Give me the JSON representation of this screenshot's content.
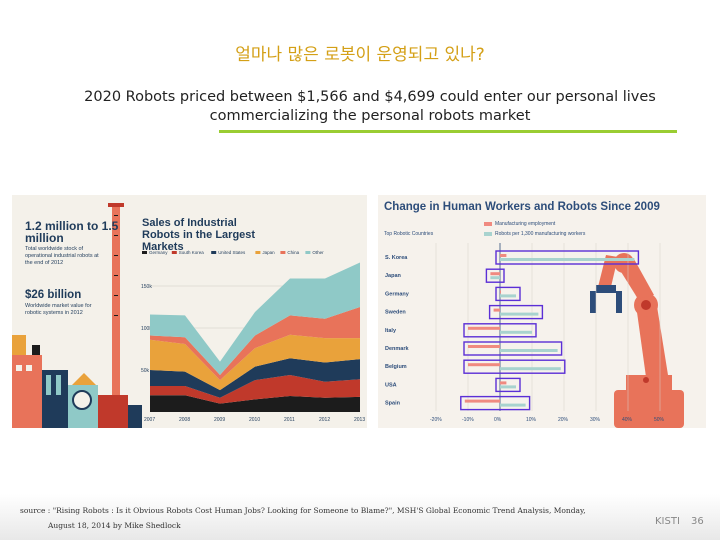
{
  "slide": {
    "title": "얼마나 많은 로봇이 운영되고 있나?",
    "subtitle_line1": "2020  Robots priced between $1,566 and $4,699 could enter our personal lives",
    "subtitle_line2": "commercializing the personal robots market"
  },
  "left_infographic": {
    "stat1": "1.2 million to 1.5 million",
    "stat1_desc": "Total worldwide stock of operational industrial robots at the end of 2012",
    "stat2": "$26 billion",
    "stat2_desc": "Worldwide market value for robotic systems in 2012",
    "chart_title": "Sales of Industrial Robots in the Largest Markets",
    "legend": [
      "Germany",
      "South Korea",
      "United States",
      "Japan",
      "China",
      "Other"
    ],
    "y_ticks": [
      "150k",
      "100k",
      "50k"
    ],
    "x_ticks": [
      "2007",
      "2008",
      "2009",
      "2010",
      "2011",
      "2012",
      "2013"
    ]
  },
  "right_infographic": {
    "title": "Change in Human Workers and Robots Since 2009",
    "subtitle": "Top Robotic Countries",
    "legend_employment": "Manufacturing employment",
    "legend_robots": "Robots per 1,300 manufacturing workers",
    "countries": [
      "S. Korea",
      "Japan",
      "Germany",
      "Sweden",
      "Italy",
      "Denmark",
      "Belgium",
      "USA",
      "Spain"
    ],
    "x_ticks": [
      "-20%",
      "-10%",
      "0%",
      "10%",
      "20%",
      "30%",
      "40%",
      "50%"
    ]
  },
  "footer": {
    "source_line1": "source : \"Rising Robots : Is it Obvious Robots Cost Human Jobs? Looking for Someone to Blame?\", MSH'S Global Economic Trend Analysis, Monday,",
    "source_line2": "August 18, 2014 by Mike Shedlock",
    "org": "KISTI",
    "page": "36"
  },
  "colors": {
    "title": "#d4a017",
    "rule": "#9acd32",
    "germany": "#1c1c1c",
    "south_korea": "#c0392b",
    "united_states": "#1f3b5a",
    "japan": "#e9a23b",
    "china": "#e8735a",
    "other": "#8fc9c7",
    "employment": "#f08a80",
    "robots": "#a8d3cf",
    "highlight": "#5b2fd6"
  },
  "chart_data": [
    {
      "type": "area",
      "title": "Sales of Industrial Robots in the Largest Markets",
      "x": [
        "2007",
        "2008",
        "2009",
        "2010",
        "2011",
        "2012",
        "2013"
      ],
      "ylim": [
        0,
        175000
      ],
      "series": [
        {
          "name": "Germany",
          "values": [
            20000,
            20000,
            10000,
            15000,
            19000,
            17000,
            18000
          ]
        },
        {
          "name": "South Korea",
          "values": [
            11000,
            11000,
            7000,
            23000,
            25000,
            19000,
            21000
          ]
        },
        {
          "name": "United States",
          "values": [
            19000,
            17000,
            9000,
            16000,
            20000,
            23000,
            24000
          ]
        },
        {
          "name": "Japan",
          "values": [
            36000,
            33000,
            12000,
            22000,
            28000,
            29000,
            25000
          ]
        },
        {
          "name": "China",
          "values": [
            5000,
            8000,
            6000,
            15000,
            23000,
            23000,
            37000
          ]
        },
        {
          "name": "Other",
          "values": [
            25000,
            26000,
            16000,
            28000,
            44000,
            48000,
            53000
          ]
        }
      ]
    },
    {
      "type": "bar",
      "title": "Change in Human Workers and Robots Since 2009",
      "categories": [
        "S. Korea",
        "Japan",
        "Germany",
        "Sweden",
        "Italy",
        "Denmark",
        "Belgium",
        "USA",
        "Spain"
      ],
      "xlim": [
        -20,
        50
      ],
      "series": [
        {
          "name": "Manufacturing employment",
          "values": [
            2,
            -3,
            0,
            -2,
            -10,
            -10,
            -10,
            2,
            -11
          ]
        },
        {
          "name": "Robots per 1,300 manufacturing workers",
          "values": [
            42,
            -3,
            5,
            12,
            10,
            18,
            19,
            5,
            8
          ]
        }
      ]
    }
  ]
}
